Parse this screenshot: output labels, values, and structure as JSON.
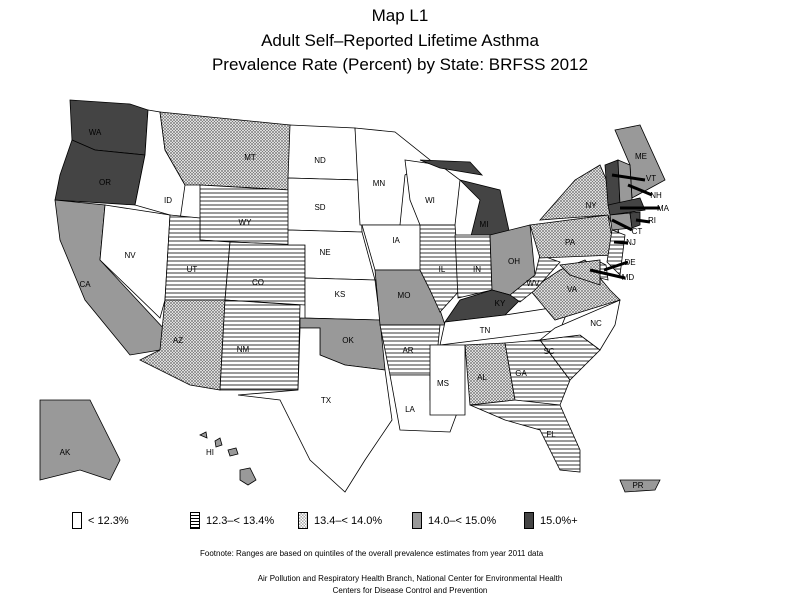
{
  "title": {
    "line1": "Map L1",
    "line2": "Adult Self–Reported Lifetime Asthma",
    "line3": "Prevalence Rate (Percent) by State: BRFSS 2012"
  },
  "legend": [
    {
      "label": "< 12.3%",
      "fill": "white"
    },
    {
      "label": "12.3–< 13.4%",
      "fill": "horizontal-lines"
    },
    {
      "label": "13.4–< 14.0%",
      "fill": "crosshatch"
    },
    {
      "label": "14.0–< 15.0%",
      "fill": "#999999"
    },
    {
      "label": "15.0%+",
      "fill": "#444444"
    }
  ],
  "states": [
    {
      "abbr": "WA",
      "cat": 4
    },
    {
      "abbr": "OR",
      "cat": 4
    },
    {
      "abbr": "CA",
      "cat": 3
    },
    {
      "abbr": "NV",
      "cat": 0
    },
    {
      "abbr": "ID",
      "cat": 0
    },
    {
      "abbr": "MT",
      "cat": 2
    },
    {
      "abbr": "WY",
      "cat": 1
    },
    {
      "abbr": "UT",
      "cat": 1
    },
    {
      "abbr": "CO",
      "cat": 1
    },
    {
      "abbr": "AZ",
      "cat": 2
    },
    {
      "abbr": "NM",
      "cat": 1
    },
    {
      "abbr": "ND",
      "cat": 0
    },
    {
      "abbr": "SD",
      "cat": 0
    },
    {
      "abbr": "NE",
      "cat": 0
    },
    {
      "abbr": "KS",
      "cat": 0
    },
    {
      "abbr": "OK",
      "cat": 3
    },
    {
      "abbr": "TX",
      "cat": 0
    },
    {
      "abbr": "MN",
      "cat": 0
    },
    {
      "abbr": "IA",
      "cat": 0
    },
    {
      "abbr": "MO",
      "cat": 3
    },
    {
      "abbr": "AR",
      "cat": 1
    },
    {
      "abbr": "LA",
      "cat": 0
    },
    {
      "abbr": "WI",
      "cat": 0
    },
    {
      "abbr": "MI",
      "cat": 4
    },
    {
      "abbr": "IL",
      "cat": 1
    },
    {
      "abbr": "IN",
      "cat": 1
    },
    {
      "abbr": "OH",
      "cat": 3
    },
    {
      "abbr": "KY",
      "cat": 4
    },
    {
      "abbr": "TN",
      "cat": 0
    },
    {
      "abbr": "MS",
      "cat": 0
    },
    {
      "abbr": "AL",
      "cat": 2
    },
    {
      "abbr": "GA",
      "cat": 1
    },
    {
      "abbr": "FL",
      "cat": 1
    },
    {
      "abbr": "SC",
      "cat": 1
    },
    {
      "abbr": "NC",
      "cat": 0
    },
    {
      "abbr": "VA",
      "cat": 2
    },
    {
      "abbr": "WV",
      "cat": 1
    },
    {
      "abbr": "PA",
      "cat": 2
    },
    {
      "abbr": "NY",
      "cat": 2
    },
    {
      "abbr": "ME",
      "cat": 3
    },
    {
      "abbr": "VT",
      "cat": 4
    },
    {
      "abbr": "NH",
      "cat": 3
    },
    {
      "abbr": "MA",
      "cat": 4
    },
    {
      "abbr": "CT",
      "cat": 3
    },
    {
      "abbr": "RI",
      "cat": 4
    },
    {
      "abbr": "NJ",
      "cat": 1
    },
    {
      "abbr": "DE",
      "cat": 1
    },
    {
      "abbr": "MD",
      "cat": 2
    },
    {
      "abbr": "AK",
      "cat": 3
    },
    {
      "abbr": "HI",
      "cat": 3
    },
    {
      "abbr": "PR",
      "cat": 3
    }
  ],
  "footnote": "Footnote: Ranges are based on quintiles of the overall prevalence estimates from year 2011 data",
  "credit1": "Air Pollution and Respiratory Health Branch, National Center for Environmental Health",
  "credit2": "Centers for Disease Control and Prevention"
}
